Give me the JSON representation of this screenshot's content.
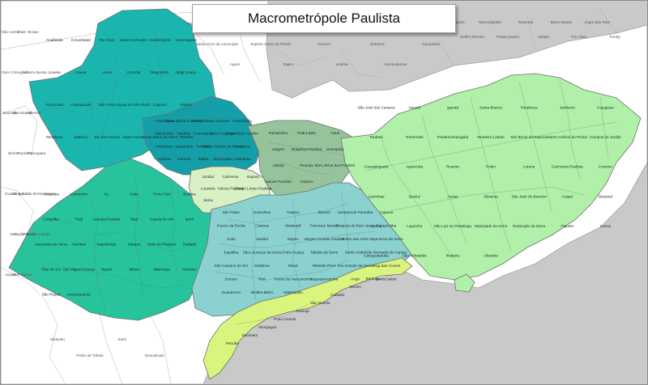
{
  "title": "Macrometrópole Paulista",
  "colors": {
    "ocean": "#c9c9c9",
    "outside": "#ffffff",
    "campinas_region": "#149fa8",
    "piracicaba_region": "#1bb5b0",
    "jundiai_region": "#d7f0c4",
    "braganca_region": "#96c39c",
    "sorocaba_region": "#27c39c",
    "sao_paulo_region": "#8ad1d0",
    "baixada_santista": "#d9f57e",
    "vale_paraiba": "#b0f0a8"
  },
  "regions": {
    "campinas": [
      "Americana",
      "Santa Bárbara d'Oeste",
      "Nova Odessa",
      "Sumaré",
      "Hortolândia",
      "Monte Mor",
      "Paulínia",
      "Cosmópolis",
      "Artur Nogueira",
      "Engenheiro Coelho",
      "Holambra",
      "Jaguariúna",
      "Pedreira",
      "Santo Antônio de Posse",
      "Campinas",
      "Valinhos",
      "Vinhedo",
      "Itatiba",
      "Morungaba",
      "Indaiatuba"
    ],
    "piracicaba": [
      "Analândia",
      "Corumbataí",
      "Rio Claro",
      "Santa Gertrudes",
      "Cordeirópolis",
      "Iracemápolis",
      "Limeira",
      "Araras",
      "Leme",
      "Conchal",
      "Mogi Mirim",
      "Mogi Guaçu",
      "Piracicaba",
      "Charqueada",
      "São Pedro",
      "Águas de São Pedro",
      "Capivari",
      "Rafard",
      "Mombuca",
      "Saltinho",
      "Rio das Pedras",
      "Elias Fausto",
      "Santa Maria da Serra",
      "Torrinha"
    ],
    "jundiai": [
      "Jundiaí",
      "Cabreúva",
      "Itupeva",
      "Louveira",
      "Várzea Paulista",
      "Campo Limpo Paulista",
      "Jarinu"
    ],
    "braganca": [
      "Pinhalzinho",
      "Pedra Bela",
      "Tuiuti",
      "Vargem",
      "Bragança Paulista",
      "Joanópolis",
      "Atibaia",
      "Piracaia",
      "Bom Jesus dos Perdões",
      "Nazaré Paulista",
      "Amparo"
    ],
    "sorocaba": [
      "Sorocaba",
      "Votorantim",
      "Itu",
      "Salto",
      "Porto Feliz",
      "Boituva",
      "Cerquilho",
      "Tietê",
      "Laranjal Paulista",
      "Tatuí",
      "Capela do Alto",
      "Iperó",
      "Araçoiaba da Serra",
      "Alambari",
      "Itapetininga",
      "Sarapuí",
      "Salto de Pirapora",
      "Piedade",
      "Pilar do Sul",
      "São Miguel Arcanjo",
      "Tapiraí",
      "Ibiúna",
      "Mairinque",
      "Alumínio",
      "São Roque",
      "Araçariguama"
    ],
    "sao_paulo": [
      "São Paulo",
      "Guarulhos",
      "Osasco",
      "Barueri",
      "Santana de Parnaíba",
      "Cajamar",
      "Franco da Rocha",
      "Caieiras",
      "Mairiporã",
      "Francisco Morato",
      "Pirapora do Bom Jesus",
      "Carapicuíba",
      "Cotia",
      "Jandira",
      "Itapevi",
      "Vargem Grande Paulista",
      "Embu das Artes",
      "Itapecerica da Serra",
      "Juquitiba",
      "São Lourenço da Serra",
      "Embu-Guaçu",
      "Taboão da Serra",
      "Santo André",
      "São Bernardo do Campo",
      "São Caetano do Sul",
      "Diadema",
      "Mauá",
      "Ribeirão Pires",
      "Rio Grande da Serra",
      "Mogi das Cruzes",
      "Suzano",
      "Poá",
      "Ferraz de Vasconcelos",
      "Itaquaquecetuba",
      "Arujá",
      "Santa Isabel",
      "Guararema",
      "Biritiba-Mirim",
      "Salesópolis"
    ],
    "baixada_santista": [
      "Bertioga",
      "Santos",
      "Cubatão",
      "São Vicente",
      "Guarujá",
      "Praia Grande",
      "Mongaguá",
      "Itanhaém",
      "Peruíbe"
    ],
    "vale_paraiba": [
      "São José dos Campos",
      "Jacareí",
      "Igaratá",
      "Santa Branca",
      "Paraibuna",
      "Jambeiro",
      "Caçapava",
      "Taubaté",
      "Tremembé",
      "Pindamonhangaba",
      "Monteiro Lobato",
      "São Bento do Sapucaí",
      "Santo Antônio do Pinhal",
      "Campos do Jordão",
      "Guaratinguetá",
      "Aparecida",
      "Roseira",
      "Potim",
      "Lorena",
      "Cachoeira Paulista",
      "Cruzeiro",
      "Lavrinhas",
      "Queluz",
      "Areias",
      "Silveiras",
      "São José do Barreiro",
      "Arapeí",
      "Bananal",
      "Cunha",
      "Lagoinha",
      "São Luiz do Paraitinga",
      "Natividade da Serra",
      "Redenção da Serra",
      "Piquete",
      "Canas",
      "Caraguatatuba",
      "São Sebastião",
      "Ilhabela",
      "Ubatuba"
    ]
  },
  "outside_towns": [
    "São Carlos",
    "Ibaté",
    "Brotas",
    "Dois Córregos",
    "Jaú",
    "Barra Bonita",
    "Botucatu",
    "São Manuel",
    "Anhembi",
    "Bofete",
    "Pardinho",
    "Porangaba",
    "Guareí",
    "Angatuba",
    "Campina do Monte Alegre",
    "Buri",
    "Capão Bonito",
    "Ribeirão Grande",
    "Juquiá",
    "Sete Barras",
    "Miracatu",
    "Pedro de Toledo",
    "Itariri",
    "Descalvado",
    "Pirassununga",
    "Santa Cruz da Conceição",
    "Aguaí",
    "Santo Antônio do Jardim",
    "Espírito Santo do Pinhal",
    "Itapira",
    "Serra Negra",
    "Socorro",
    "Lindóia",
    "Monte Alegre do Sul",
    "Extrema",
    "Camanducaia",
    "Sapucaí-Mirim",
    "Gonçalves",
    "Paraisópolis",
    "Delfim Moreira",
    "Marmelópolis",
    "Passa Quatro",
    "Resende",
    "Itatiaia",
    "Barra Mansa",
    "Rio Claro",
    "Angra dos Reis",
    "Paraty"
  ]
}
